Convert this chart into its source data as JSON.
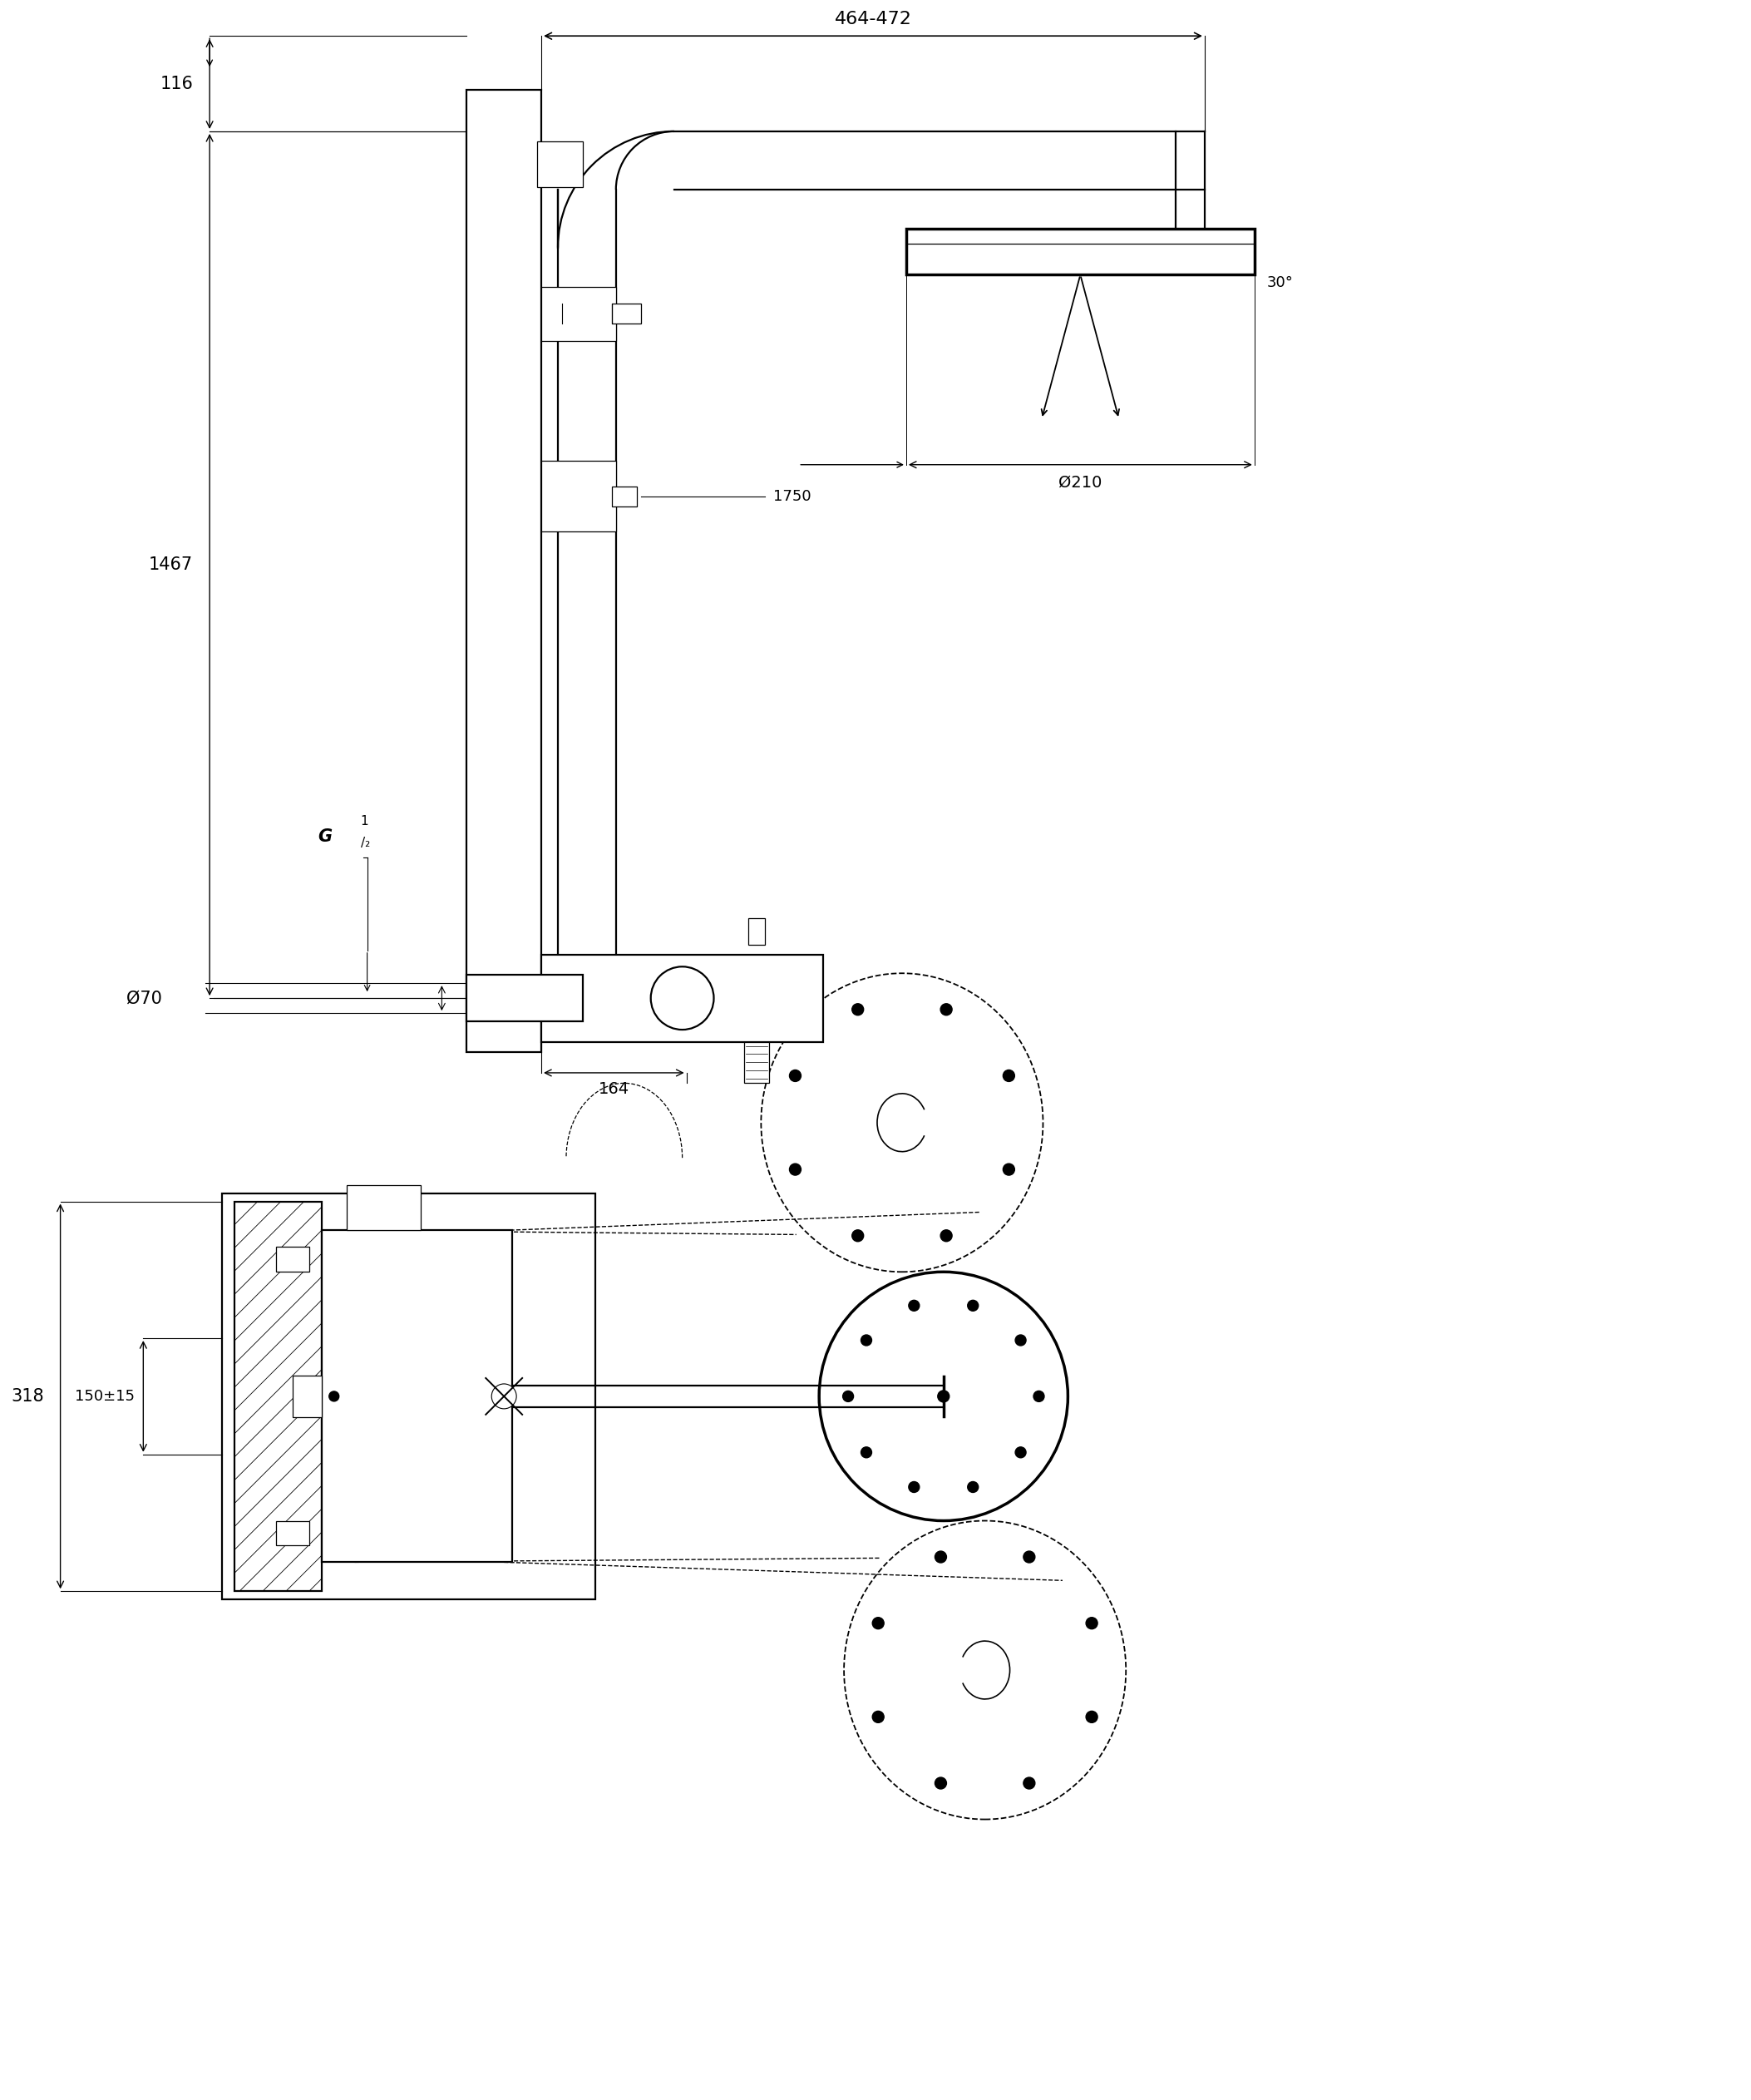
{
  "bg_color": "#ffffff",
  "fig_width": 21.06,
  "fig_height": 25.25,
  "dim_464_472": "464-472",
  "dim_116": "116",
  "dim_1467": "1467",
  "dim_1750": "1750",
  "dim_70": "Ø70",
  "dim_164": "164",
  "dim_318": "318",
  "dim_150": "150±15",
  "dim_210": "Ø210",
  "dim_30": "30°"
}
